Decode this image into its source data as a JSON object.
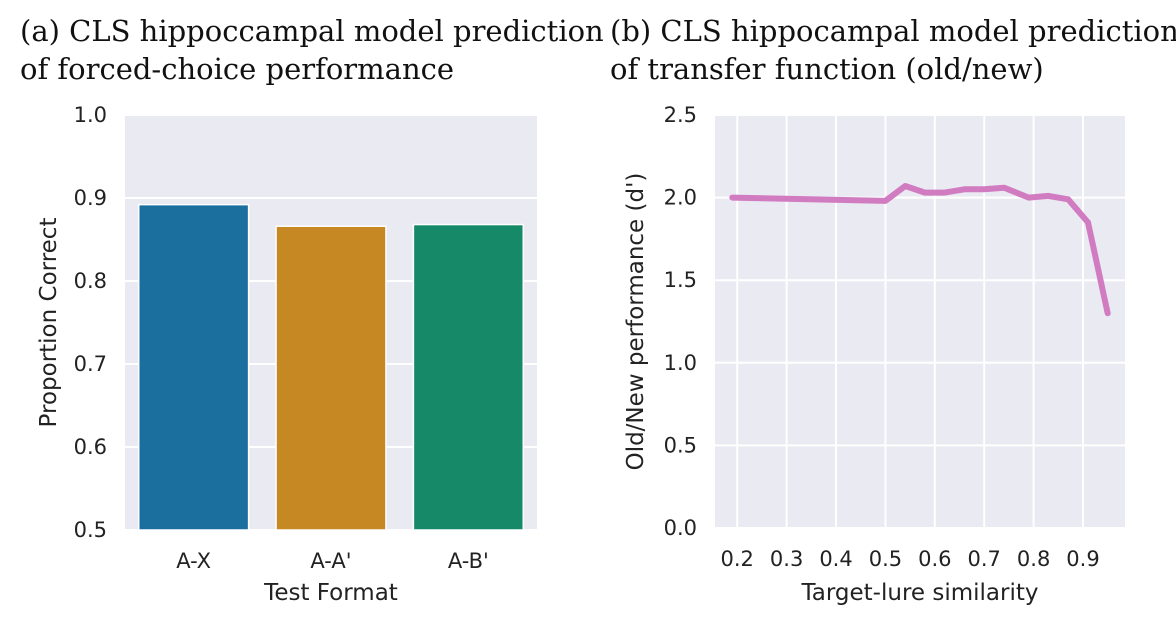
{
  "panels": {
    "a": {
      "title_line1": "(a) CLS hippoccampal model prediction",
      "title_line2": "of forced-choice performance"
    },
    "b": {
      "title_line1": "(b) CLS hippocampal model prediction",
      "title_line2": "of transfer function (old/new)"
    }
  },
  "colors": {
    "plot_background": "#eaeaf2",
    "grid": "#ffffff",
    "bar_blue": "#1a6f9f",
    "bar_orange": "#c58823",
    "bar_green": "#168a68",
    "line_pink": "#d17bc1"
  },
  "chart_data": [
    {
      "type": "bar",
      "title": "(a) CLS hippoccampal model prediction of forced-choice performance",
      "categories": [
        "A-X",
        "A-A'",
        "A-B'"
      ],
      "values": [
        0.892,
        0.866,
        0.868
      ],
      "bar_colors": [
        "#1a6f9f",
        "#c58823",
        "#168a68"
      ],
      "xlabel": "Test Format",
      "ylabel": "Proportion Correct",
      "ylim": [
        0.5,
        1.0
      ],
      "yticks": [
        0.5,
        0.6,
        0.7,
        0.8,
        0.9,
        1.0
      ],
      "ytick_labels": [
        "0.5",
        "0.6",
        "0.7",
        "0.8",
        "0.9",
        "1.0"
      ],
      "grid": true
    },
    {
      "type": "line",
      "title": "(b) CLS hippocampal model prediction of transfer function (old/new)",
      "x": [
        0.19,
        0.5,
        0.54,
        0.58,
        0.62,
        0.66,
        0.7,
        0.74,
        0.79,
        0.83,
        0.87,
        0.91,
        0.95
      ],
      "y": [
        2.0,
        1.98,
        2.07,
        2.03,
        2.03,
        2.05,
        2.05,
        2.06,
        2.0,
        2.01,
        1.99,
        1.85,
        1.3
      ],
      "line_color": "#d17bc1",
      "xlabel": "Target-lure similarity",
      "ylabel": "Old/New performance (d')",
      "xlim": [
        0.155,
        0.985
      ],
      "ylim": [
        0.0,
        2.5
      ],
      "xticks": [
        0.2,
        0.3,
        0.4,
        0.5,
        0.6,
        0.7,
        0.8,
        0.9
      ],
      "xtick_labels": [
        "0.2",
        "0.3",
        "0.4",
        "0.5",
        "0.6",
        "0.7",
        "0.8",
        "0.9"
      ],
      "yticks": [
        0.0,
        0.5,
        1.0,
        1.5,
        2.0,
        2.5
      ],
      "ytick_labels": [
        "0.0",
        "0.5",
        "1.0",
        "1.5",
        "2.0",
        "2.5"
      ],
      "grid": true
    }
  ]
}
